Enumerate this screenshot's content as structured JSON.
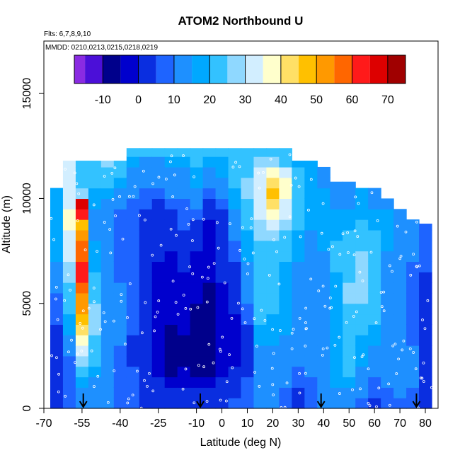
{
  "chart_data": {
    "type": "heatmap",
    "title": "ATOM2 Northbound U",
    "subtitle_flights": "Flts: 6,7,8,9,10",
    "subtitle_dates": "MMDD: 0210,0213,0215,0218,0219",
    "xlabel": "Latitude (deg N)",
    "ylabel": "Altitude (m)",
    "xlim": [
      -70,
      85
    ],
    "ylim": [
      0,
      17500
    ],
    "x_ticks": [
      -70,
      -55,
      -40,
      -25,
      -10,
      0,
      10,
      20,
      30,
      40,
      50,
      60,
      70,
      80
    ],
    "x_tick_labels": [
      "-70",
      "-55",
      "-40",
      "-25",
      "-10",
      "0",
      "10",
      "20",
      "30",
      "40",
      "50",
      "60",
      "70",
      "80"
    ],
    "y_ticks": [
      0,
      5000,
      10000,
      15000
    ],
    "y_tick_labels": [
      "0",
      "5000",
      "10000",
      "15000"
    ],
    "colorbar": {
      "range": [
        -18,
        75
      ],
      "boundaries": [
        -18,
        -15,
        -10,
        -5,
        0,
        5,
        10,
        15,
        20,
        25,
        30,
        35,
        40,
        45,
        50,
        55,
        60,
        65,
        70,
        75
      ],
      "ticks": [
        -10,
        0,
        10,
        20,
        30,
        40,
        50,
        60,
        70
      ],
      "tick_labels": [
        "-10",
        "0",
        "10",
        "20",
        "30",
        "40",
        "50",
        "60",
        "70"
      ],
      "colors": [
        "#8a2be2",
        "#4b0fd8",
        "#00008b",
        "#0000cd",
        "#0a2ee0",
        "#1e64ff",
        "#1e90ff",
        "#00a8ff",
        "#33c2ff",
        "#8fd8ff",
        "#d2eeff",
        "#ffffcc",
        "#ffe066",
        "#ffc000",
        "#ff9900",
        "#ff6600",
        "#ff1a1a",
        "#dd0000",
        "#a00000"
      ]
    },
    "arrows_latitude": [
      -54.5,
      -8.5,
      39,
      76.5
    ],
    "profile": [
      {
        "lat": -65,
        "top": 10500,
        "vals": [
          4,
          3,
          3,
          2,
          2,
          3,
          4,
          4,
          5,
          6,
          7,
          10,
          12,
          14,
          15,
          16,
          16,
          16,
          16,
          16,
          16
        ]
      },
      {
        "lat": -60,
        "top": 11800,
        "vals": [
          6,
          6,
          7,
          8,
          9,
          12,
          14,
          16,
          18,
          20,
          22,
          24,
          26,
          28,
          30,
          32,
          34,
          36,
          35,
          30,
          30,
          30,
          30,
          30
        ]
      },
      {
        "lat": -55,
        "top": 11800,
        "vals": [
          10,
          12,
          16,
          20,
          26,
          30,
          35,
          40,
          46,
          50,
          54,
          58,
          60,
          60,
          58,
          56,
          52,
          48,
          64,
          68,
          28,
          20,
          22,
          20
        ]
      },
      {
        "lat": -50,
        "top": 11800,
        "vals": [
          10,
          12,
          14,
          16,
          20,
          22,
          24,
          26,
          26,
          25,
          24,
          22,
          20,
          18,
          16,
          15,
          14,
          14,
          14,
          16,
          18,
          20,
          22,
          24
        ]
      },
      {
        "lat": -45,
        "top": 11800,
        "vals": [
          10,
          10,
          10,
          10,
          12,
          14,
          14,
          14,
          14,
          14,
          14,
          12,
          10,
          10,
          10,
          10,
          10,
          10,
          10,
          12,
          16,
          20,
          24,
          26
        ]
      },
      {
        "lat": -40,
        "top": 11800,
        "vals": [
          8,
          8,
          8,
          8,
          8,
          8,
          10,
          10,
          10,
          10,
          10,
          10,
          8,
          8,
          8,
          8,
          8,
          8,
          8,
          10,
          14,
          18,
          22,
          24
        ]
      },
      {
        "lat": -35,
        "top": 12400,
        "vals": [
          6,
          6,
          5,
          5,
          4,
          4,
          4,
          5,
          5,
          5,
          5,
          5,
          6,
          6,
          6,
          6,
          6,
          6,
          6,
          8,
          10,
          12,
          14,
          16,
          20
        ]
      },
      {
        "lat": -30,
        "top": 12400,
        "vals": [
          4,
          4,
          3,
          2,
          2,
          1,
          1,
          1,
          2,
          2,
          2,
          2,
          3,
          3,
          4,
          4,
          4,
          4,
          4,
          6,
          8,
          10,
          12,
          14,
          20
        ]
      },
      {
        "lat": -25,
        "top": 12400,
        "vals": [
          2,
          2,
          0,
          -2,
          -4,
          -4,
          -4,
          -4,
          -3,
          -2,
          -2,
          -2,
          -1,
          -1,
          0,
          0,
          1,
          2,
          2,
          4,
          8,
          10,
          12,
          14,
          20
        ]
      },
      {
        "lat": -20,
        "top": 12400,
        "vals": [
          2,
          0,
          -4,
          -6,
          -6,
          -6,
          -6,
          -6,
          -4,
          -3,
          -3,
          -3,
          -2,
          -2,
          -1,
          0,
          1,
          2,
          3,
          6,
          10,
          12,
          14,
          16,
          22
        ]
      },
      {
        "lat": -15,
        "top": 12400,
        "vals": [
          3,
          2,
          -2,
          -4,
          -6,
          -6,
          -6,
          -5,
          -4,
          -3,
          -2,
          -2,
          -1,
          0,
          2,
          3,
          4,
          5,
          6,
          8,
          10,
          12,
          14,
          18,
          22
        ]
      },
      {
        "lat": -10,
        "top": 12400,
        "vals": [
          2,
          0,
          -4,
          -6,
          -8,
          -8,
          -8,
          -8,
          -6,
          -6,
          -5,
          -4,
          -3,
          -2,
          -1,
          0,
          2,
          4,
          6,
          10,
          14,
          16,
          18,
          20,
          22
        ]
      },
      {
        "lat": -5,
        "top": 12400,
        "vals": [
          2,
          0,
          -4,
          -6,
          -8,
          -8,
          -8,
          -8,
          -8,
          -6,
          -6,
          -6,
          -4,
          -4,
          -4,
          -4,
          -2,
          -2,
          0,
          4,
          8,
          12,
          14,
          16,
          20
        ]
      },
      {
        "lat": 0,
        "top": 12400,
        "vals": [
          4,
          2,
          0,
          -2,
          -4,
          -4,
          -4,
          -4,
          -4,
          -3,
          -2,
          -1,
          0,
          0,
          0,
          1,
          2,
          3,
          4,
          6,
          10,
          14,
          16,
          18,
          20
        ]
      },
      {
        "lat": 5,
        "top": 12400,
        "vals": [
          6,
          4,
          2,
          0,
          -2,
          -2,
          -2,
          -2,
          -1,
          0,
          1,
          2,
          2,
          4,
          6,
          8,
          10,
          12,
          14,
          16,
          18,
          20,
          22,
          22,
          20
        ]
      },
      {
        "lat": 10,
        "top": 12400,
        "vals": [
          8,
          8,
          6,
          4,
          2,
          2,
          2,
          4,
          6,
          8,
          10,
          10,
          12,
          14,
          16,
          16,
          18,
          20,
          22,
          24,
          26,
          26,
          24,
          22,
          20
        ]
      },
      {
        "lat": 15,
        "top": 12400,
        "vals": [
          10,
          10,
          10,
          12,
          14,
          14,
          16,
          18,
          20,
          20,
          22,
          22,
          22,
          22,
          24,
          24,
          26,
          28,
          30,
          32,
          34,
          34,
          30,
          26,
          22
        ]
      },
      {
        "lat": 20,
        "top": 12400,
        "vals": [
          10,
          10,
          12,
          14,
          14,
          14,
          16,
          18,
          18,
          20,
          20,
          20,
          20,
          22,
          24,
          24,
          26,
          30,
          36,
          40,
          46,
          44,
          36,
          28,
          22
        ]
      },
      {
        "lat": 25,
        "top": 12400,
        "vals": [
          8,
          8,
          10,
          12,
          12,
          12,
          14,
          16,
          16,
          16,
          18,
          18,
          18,
          18,
          20,
          20,
          22,
          26,
          30,
          34,
          38,
          36,
          30,
          24,
          20
        ]
      },
      {
        "lat": 30,
        "top": 11800,
        "vals": [
          4,
          4,
          6,
          8,
          10,
          10,
          12,
          14,
          14,
          14,
          14,
          14,
          14,
          14,
          16,
          16,
          18,
          20,
          22,
          24,
          24,
          22,
          20,
          18
        ]
      },
      {
        "lat": 35,
        "top": 11800,
        "vals": [
          6,
          6,
          8,
          10,
          10,
          12,
          12,
          12,
          12,
          12,
          12,
          12,
          12,
          12,
          14,
          14,
          14,
          16,
          18,
          18,
          18,
          18,
          16,
          16
        ]
      },
      {
        "lat": 40,
        "top": 11500,
        "vals": [
          10,
          10,
          10,
          10,
          10,
          10,
          10,
          12,
          12,
          12,
          14,
          14,
          14,
          14,
          14,
          16,
          18,
          18,
          18,
          16,
          16,
          14,
          14
        ]
      },
      {
        "lat": 45,
        "top": 10800,
        "vals": [
          12,
          14,
          16,
          16,
          16,
          16,
          16,
          16,
          18,
          18,
          18,
          18,
          18,
          20,
          20,
          20,
          18,
          16,
          16,
          14,
          14,
          14
        ]
      },
      {
        "lat": 50,
        "top": 10800,
        "vals": [
          12,
          14,
          18,
          20,
          22,
          22,
          22,
          22,
          22,
          24,
          26,
          26,
          24,
          22,
          22,
          22,
          20,
          18,
          16,
          14,
          14,
          14
        ]
      },
      {
        "lat": 55,
        "top": 10500,
        "vals": [
          8,
          10,
          12,
          14,
          16,
          16,
          18,
          20,
          22,
          24,
          26,
          28,
          28,
          26,
          26,
          24,
          22,
          20,
          18,
          16,
          16
        ]
      },
      {
        "lat": 60,
        "top": 10500,
        "vals": [
          4,
          6,
          8,
          10,
          12,
          14,
          16,
          18,
          20,
          20,
          20,
          20,
          20,
          22,
          24,
          22,
          20,
          18,
          16,
          14,
          14
        ]
      },
      {
        "lat": 65,
        "top": 10000,
        "vals": [
          6,
          8,
          10,
          12,
          14,
          14,
          14,
          14,
          14,
          14,
          14,
          14,
          14,
          14,
          14,
          16,
          18,
          18,
          16,
          14
        ]
      },
      {
        "lat": 70,
        "top": 9600,
        "vals": [
          8,
          10,
          12,
          12,
          12,
          12,
          12,
          12,
          10,
          10,
          10,
          10,
          10,
          10,
          12,
          14,
          14,
          14,
          14
        ]
      },
      {
        "lat": 75,
        "top": 9200,
        "vals": [
          6,
          8,
          10,
          10,
          10,
          10,
          8,
          8,
          6,
          6,
          6,
          6,
          6,
          8,
          10,
          10,
          12,
          12
        ]
      },
      {
        "lat": 80,
        "top": 8800,
        "vals": [
          4,
          4,
          4,
          4,
          4,
          4,
          4,
          4,
          4,
          4,
          4,
          4,
          4,
          6,
          8,
          8,
          8,
          8
        ]
      }
    ],
    "legend_placement": "top"
  }
}
